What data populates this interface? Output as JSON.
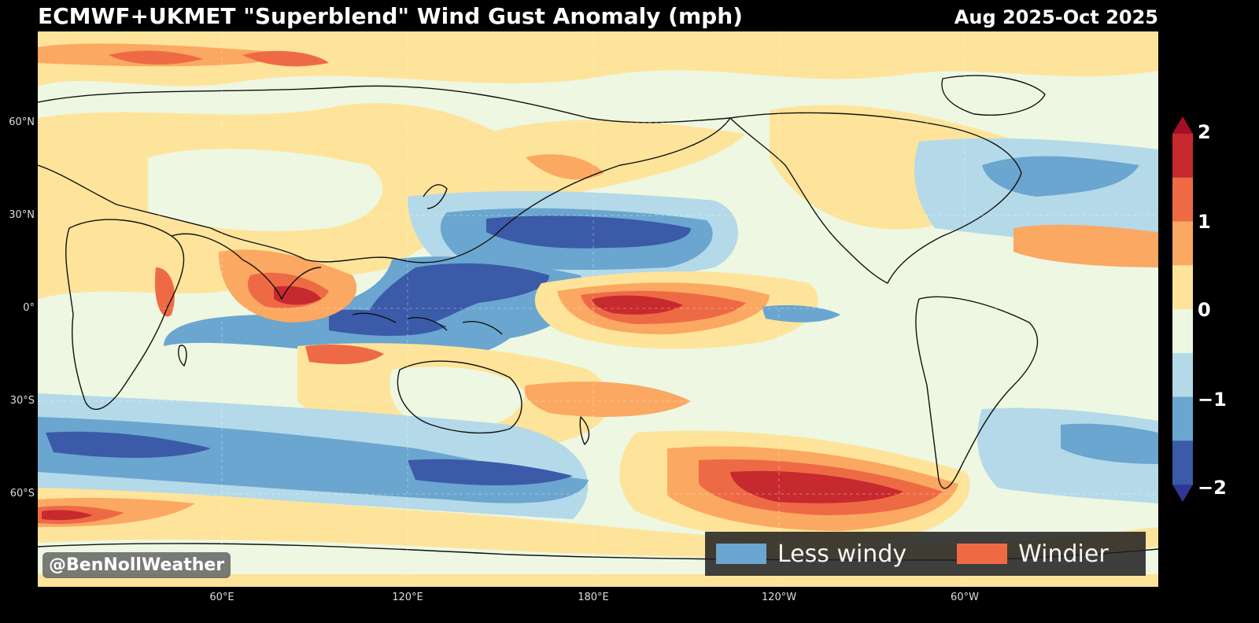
{
  "title": "ECMWF+UKMET \"Superblend\" Wind Gust Anomaly (mph)",
  "period": "Aug 2025-Oct 2025",
  "credit": "@BenNollWeather",
  "lat_labels": [
    "60°N",
    "30°N",
    "0°",
    "30°S",
    "60°S"
  ],
  "lon_labels": [
    "60°E",
    "120°E",
    "180°E",
    "120°W",
    "60°W"
  ],
  "colorbar": {
    "labels": [
      "2",
      "1",
      "0",
      "−1",
      "−2"
    ],
    "colors": [
      "#c62a2f",
      "#ee6a45",
      "#fba862",
      "#fde49a",
      "#eef7e2",
      "#b4d9e8",
      "#6aa6cf",
      "#3b5aa8"
    ],
    "extend_max_color": "#a50f26",
    "extend_min_color": "#313695"
  },
  "legend": {
    "items": [
      {
        "label": "Less windy",
        "color": "#6aa6cf"
      },
      {
        "label": "Windier",
        "color": "#ee6a45"
      }
    ]
  },
  "map_colors": {
    "neutral": "#eef7e2",
    "weak_pos": "#fde49a",
    "pos": "#fba862",
    "strong_pos": "#ee6a45",
    "very_strong_pos": "#c62a2f",
    "weak_neg": "#b4d9e8",
    "neg": "#6aa6cf",
    "strong_neg": "#3b5aa8"
  }
}
